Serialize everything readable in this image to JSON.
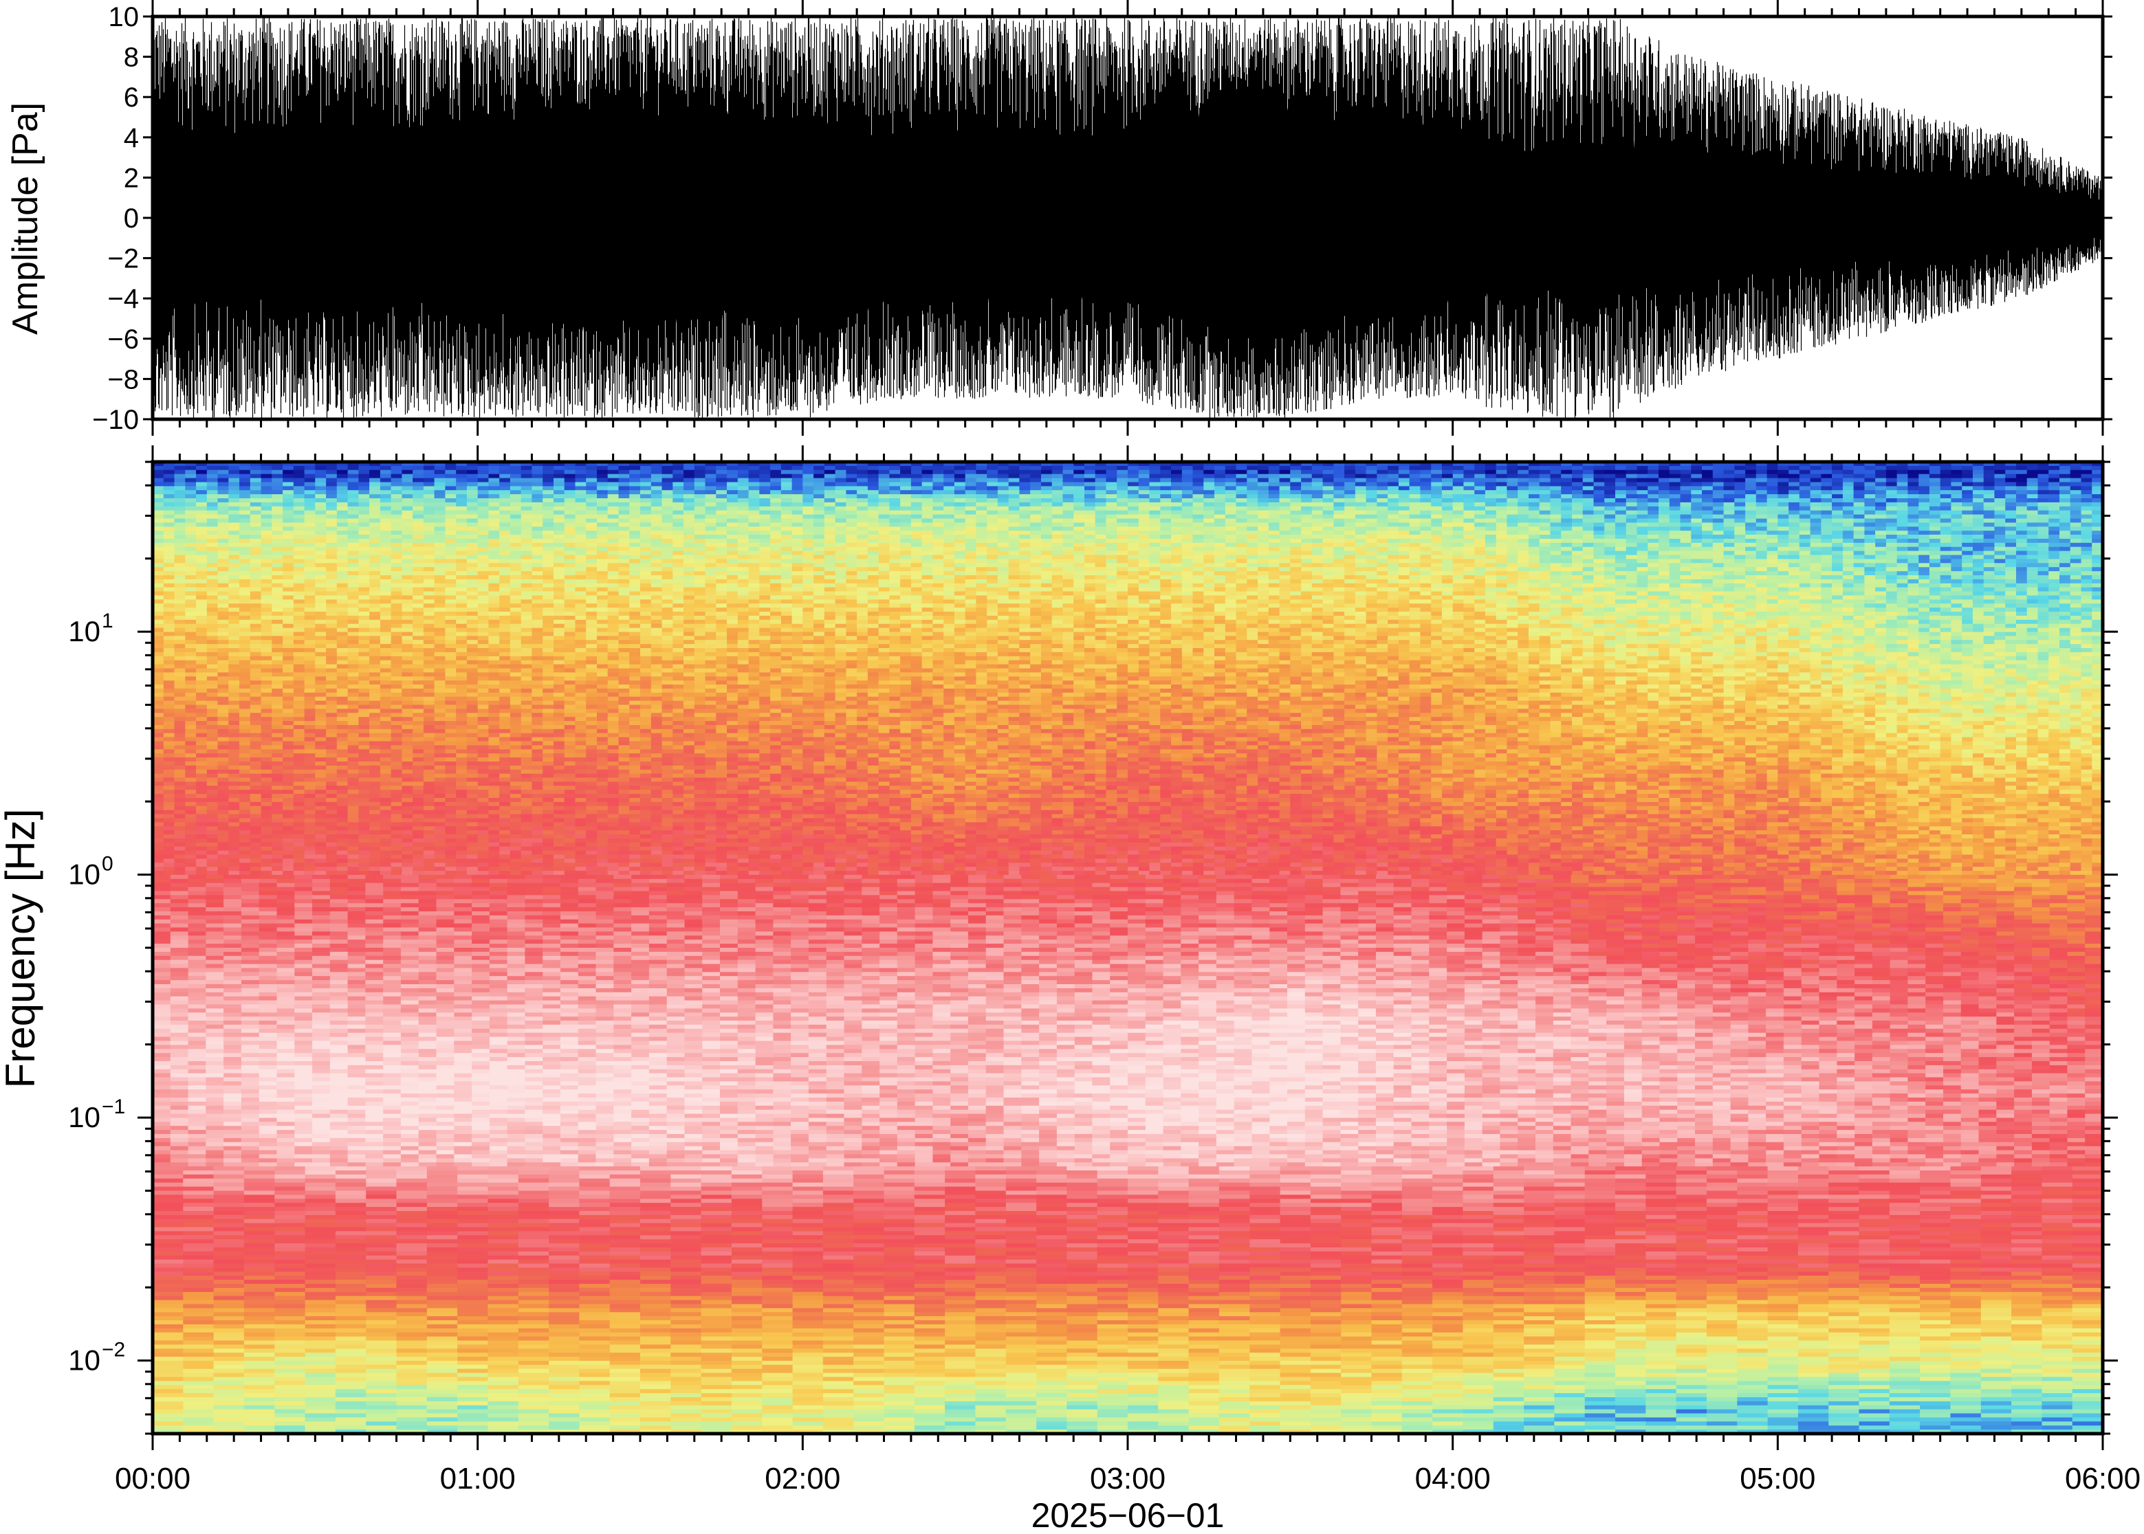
{
  "chart_data": [
    {
      "type": "line",
      "panel": "waveform",
      "title": "",
      "xlabel": "",
      "ylabel": "Amplitude [Pa]",
      "xlim_hours": [
        0,
        6
      ],
      "ylim": [
        -10,
        10
      ],
      "yticks": [
        -10,
        -8,
        -6,
        -4,
        -2,
        0,
        2,
        4,
        6,
        8,
        10
      ],
      "ytick_labels": [
        "−10",
        "−8",
        "−6",
        "−4",
        "−2",
        "0",
        "2",
        "4",
        "6",
        "8",
        "10"
      ],
      "grid": false,
      "series": [
        {
          "color": "#000000",
          "description_free": true,
          "x_hours": [
            0.0,
            0.25,
            0.5,
            0.75,
            1.0,
            1.25,
            1.5,
            1.75,
            2.0,
            2.25,
            2.5,
            2.75,
            3.0,
            3.25,
            3.4,
            3.5,
            3.75,
            4.0,
            4.25,
            4.5,
            4.75,
            5.0,
            5.25,
            5.5,
            5.75,
            6.0
          ],
          "envelope_max": [
            10,
            10,
            10,
            10,
            10,
            10,
            10,
            10,
            10,
            10,
            10,
            10,
            10,
            10,
            10,
            10,
            10,
            10,
            10,
            10,
            8,
            7,
            6,
            5,
            4,
            2
          ],
          "envelope_min": [
            -10,
            -10,
            -10,
            -10,
            -10,
            -10,
            -10,
            -10,
            -10,
            -9,
            -9,
            -9,
            -9,
            -10,
            -10,
            -10,
            -9,
            -9,
            -10,
            -10,
            -8,
            -7,
            -6,
            -5,
            -4,
            -2
          ],
          "core_max": [
            4.5,
            3.5,
            4.5,
            4.0,
            4.5,
            5.0,
            5.0,
            4.5,
            4.5,
            4.0,
            4.0,
            3.5,
            4.0,
            5.0,
            6.0,
            5.0,
            4.5,
            4.0,
            3.0,
            3.5,
            3.0,
            2.5,
            2.0,
            2.0,
            1.5,
            0.8
          ],
          "core_min": [
            -4.5,
            -3.5,
            -4.5,
            -4.0,
            -4.5,
            -5.0,
            -5.0,
            -4.5,
            -4.5,
            -4.0,
            -4.0,
            -3.5,
            -4.0,
            -5.0,
            -6.0,
            -5.0,
            -4.5,
            -4.0,
            -3.0,
            -3.5,
            -3.0,
            -2.5,
            -2.0,
            -2.0,
            -1.5,
            -0.8
          ]
        }
      ]
    },
    {
      "type": "heatmap",
      "panel": "spectrogram",
      "title": "",
      "xlabel": "2025−06−01",
      "ylabel": "Frequency [Hz]",
      "yscale": "log",
      "ylim_hz": [
        0.005,
        50
      ],
      "ytick_values": [
        0.01,
        0.1,
        1,
        10
      ],
      "ytick_labels": [
        {
          "base": "10",
          "exp": "−2"
        },
        {
          "base": "10",
          "exp": "−1"
        },
        {
          "base": "10",
          "exp": "0"
        },
        {
          "base": "10",
          "exp": "1"
        }
      ],
      "xlim_hours": [
        0,
        6
      ],
      "xtick_labels": [
        "00:00",
        "01:00",
        "02:00",
        "03:00",
        "04:00",
        "05:00",
        "06:00"
      ],
      "grid": false,
      "colormap_stops": [
        "#0a0a8c",
        "#2a5be0",
        "#5ad8e6",
        "#b6f0a8",
        "#f0f080",
        "#f8c850",
        "#f59a45",
        "#f06a55",
        "#f2505a",
        "#f58a8c",
        "#fbbcbd",
        "#fde2e2"
      ],
      "time_columns_hours": [
        0.0,
        0.5,
        1.0,
        1.5,
        2.0,
        2.5,
        3.0,
        3.5,
        4.0,
        4.5,
        5.0,
        5.5,
        6.0
      ],
      "log10_freq_rows": [
        1.7,
        1.5,
        1.3,
        1.0,
        0.7,
        0.4,
        0.0,
        -0.3,
        -0.6,
        -0.9,
        -1.2,
        -1.4,
        -1.6,
        -1.8,
        -2.0,
        -2.2
      ],
      "colormap_index_grid": [
        [
          0,
          0,
          0,
          0,
          0,
          0,
          0,
          0,
          0,
          0,
          0,
          0,
          0
        ],
        [
          3,
          3,
          3,
          3,
          3,
          3,
          3,
          3,
          3,
          2,
          2,
          2,
          2
        ],
        [
          4,
          4,
          4,
          4,
          4,
          4,
          4,
          4,
          4,
          3,
          3,
          2,
          2
        ],
        [
          5,
          5,
          5,
          5,
          5,
          5,
          5,
          5,
          5,
          4,
          4,
          3,
          3
        ],
        [
          6,
          6,
          6,
          6,
          6,
          6,
          6,
          6,
          6,
          5,
          5,
          4,
          4
        ],
        [
          7,
          7,
          7,
          7,
          7,
          6,
          7,
          7,
          6,
          6,
          6,
          5,
          5
        ],
        [
          8,
          8,
          8,
          8,
          8,
          8,
          8,
          8,
          8,
          7,
          7,
          6,
          6
        ],
        [
          9,
          9,
          9,
          9,
          9,
          9,
          9,
          9,
          9,
          8,
          8,
          8,
          7
        ],
        [
          10,
          10,
          10,
          10,
          10,
          10,
          10,
          11,
          10,
          10,
          9,
          9,
          8
        ],
        [
          10,
          11,
          11,
          11,
          10,
          10,
          11,
          11,
          10,
          10,
          10,
          9,
          9
        ],
        [
          9,
          10,
          10,
          10,
          10,
          9,
          10,
          10,
          10,
          9,
          9,
          9,
          8
        ],
        [
          8,
          8,
          8,
          8,
          8,
          8,
          8,
          8,
          8,
          8,
          8,
          8,
          8
        ],
        [
          8,
          8,
          8,
          8,
          8,
          8,
          8,
          8,
          8,
          8,
          8,
          8,
          8
        ],
        [
          6,
          6,
          6,
          6,
          6,
          6,
          6,
          6,
          6,
          5,
          5,
          5,
          5
        ],
        [
          5,
          4,
          5,
          5,
          5,
          5,
          5,
          5,
          5,
          4,
          4,
          4,
          4
        ],
        [
          4,
          3,
          3,
          4,
          4,
          3,
          3,
          4,
          3,
          2,
          2,
          2,
          2
        ]
      ]
    }
  ]
}
